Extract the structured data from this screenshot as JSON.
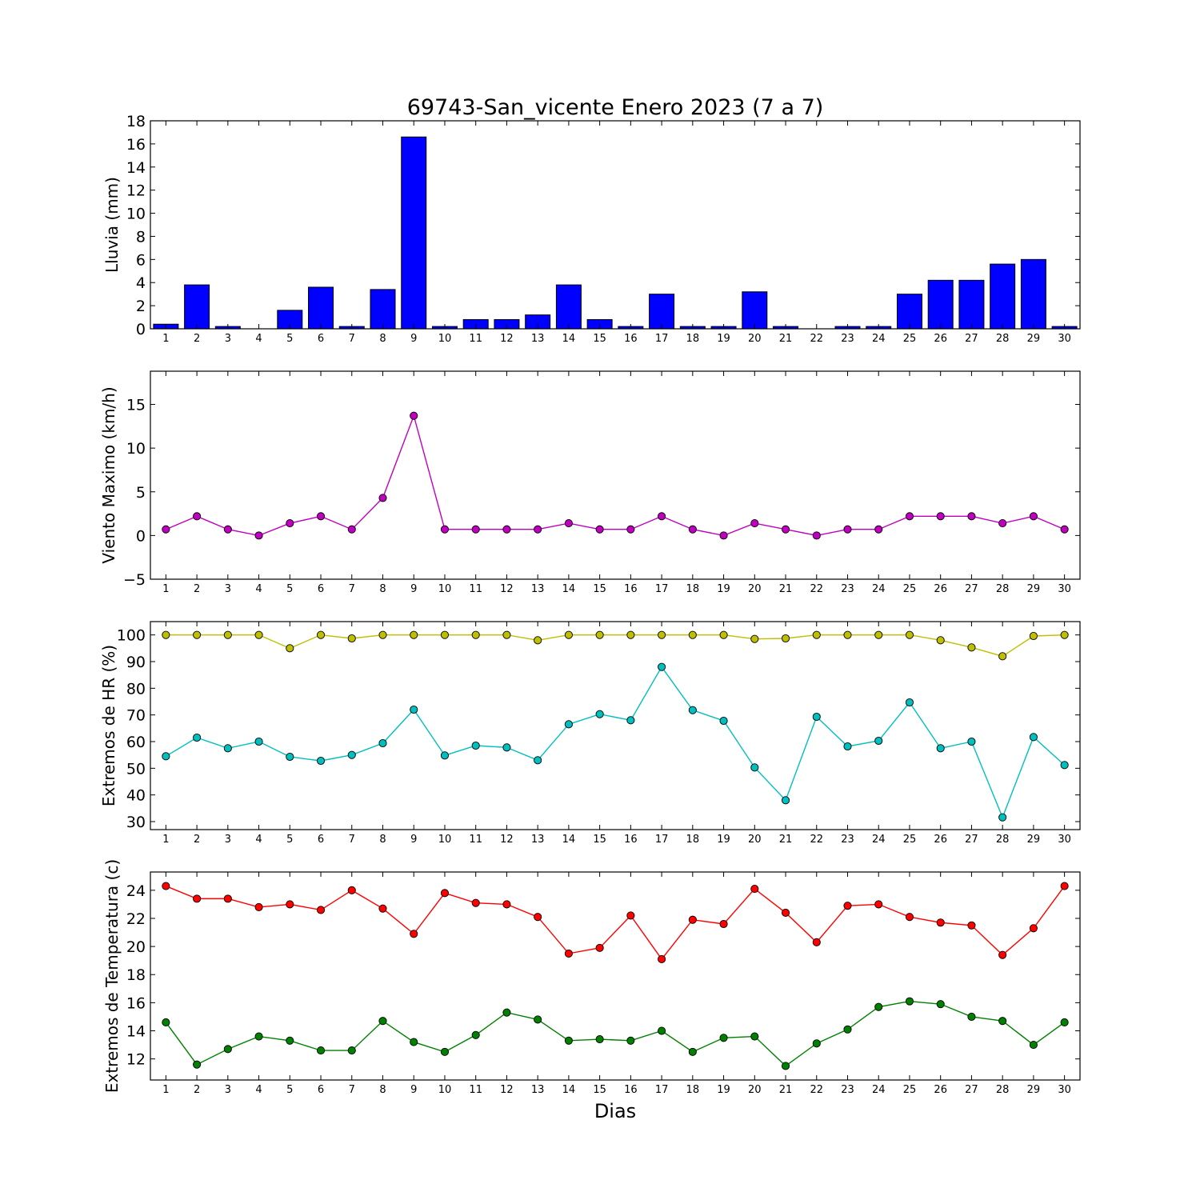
{
  "title": "69743-San_vicente Enero 2023  (7 a 7)",
  "xlabel": "Dias",
  "chart_data": [
    {
      "type": "bar",
      "ylabel": "Lluvia (mm)",
      "categories": [
        "1",
        "2",
        "3",
        "4",
        "5",
        "6",
        "7",
        "8",
        "9",
        "10",
        "11",
        "12",
        "13",
        "14",
        "15",
        "16",
        "17",
        "18",
        "19",
        "20",
        "21",
        "22",
        "23",
        "24",
        "25",
        "26",
        "27",
        "28",
        "29",
        "30"
      ],
      "ylim": [
        0,
        18
      ],
      "yticks": [
        0,
        2,
        4,
        6,
        8,
        10,
        12,
        14,
        16,
        18
      ],
      "series": [
        {
          "color": "#0000ff",
          "values": [
            0.4,
            3.8,
            0.2,
            0,
            1.6,
            3.6,
            0.2,
            3.4,
            16.6,
            0.2,
            0.8,
            0.8,
            1.2,
            3.8,
            0.8,
            0.2,
            3.0,
            0.2,
            0.2,
            3.2,
            0.2,
            0,
            0.2,
            0.2,
            3.0,
            4.2,
            4.2,
            5.6,
            6.0,
            0.2
          ]
        }
      ]
    },
    {
      "type": "line",
      "ylabel": "Viento Maximo (km/h)",
      "categories": [
        "1",
        "2",
        "3",
        "4",
        "5",
        "6",
        "7",
        "8",
        "9",
        "10",
        "11",
        "12",
        "13",
        "14",
        "15",
        "16",
        "17",
        "18",
        "19",
        "20",
        "21",
        "22",
        "23",
        "24",
        "25",
        "26",
        "27",
        "28",
        "29",
        "30"
      ],
      "ylim": [
        -5,
        18.8
      ],
      "yticks": [
        -5,
        0,
        5,
        10,
        15
      ],
      "series": [
        {
          "color": "#bf00bf",
          "values": [
            0.7,
            2.2,
            0.7,
            0,
            1.4,
            2.2,
            0.7,
            4.3,
            13.7,
            0.7,
            0.7,
            0.7,
            0.7,
            1.4,
            0.7,
            0.7,
            2.2,
            0.7,
            0,
            1.4,
            0.7,
            0,
            0.7,
            0.7,
            2.2,
            2.2,
            2.2,
            1.4,
            2.2,
            0.7
          ]
        }
      ]
    },
    {
      "type": "line",
      "ylabel": "Extremos de HR (%)",
      "categories": [
        "1",
        "2",
        "3",
        "4",
        "5",
        "6",
        "7",
        "8",
        "9",
        "10",
        "11",
        "12",
        "13",
        "14",
        "15",
        "16",
        "17",
        "18",
        "19",
        "20",
        "21",
        "22",
        "23",
        "24",
        "25",
        "26",
        "27",
        "28",
        "29",
        "30"
      ],
      "ylim": [
        27,
        105
      ],
      "yticks": [
        30,
        40,
        50,
        60,
        70,
        80,
        90,
        100
      ],
      "series": [
        {
          "color": "#bfbf00",
          "values": [
            100,
            100,
            100,
            100,
            95,
            100,
            98.7,
            100,
            100,
            100,
            100,
            100,
            98,
            100,
            100,
            100,
            100,
            100,
            100,
            98.5,
            98.7,
            100,
            100,
            100,
            100,
            98,
            95.3,
            92,
            99.6,
            100
          ]
        },
        {
          "color": "#00bfbf",
          "values": [
            54.5,
            61.5,
            57.5,
            60,
            54.3,
            52.8,
            55,
            59.4,
            72,
            54.8,
            58.5,
            57.8,
            53,
            66.5,
            70.3,
            68,
            88,
            71.8,
            67.8,
            50.3,
            38,
            69.3,
            58.2,
            60.3,
            74.7,
            57.5,
            60,
            31.6,
            61.7,
            51.2
          ]
        }
      ]
    },
    {
      "type": "line",
      "ylabel": "Extremos de Temperatura (c)",
      "categories": [
        "1",
        "2",
        "3",
        "4",
        "5",
        "6",
        "7",
        "8",
        "9",
        "10",
        "11",
        "12",
        "13",
        "14",
        "15",
        "16",
        "17",
        "18",
        "19",
        "20",
        "21",
        "22",
        "23",
        "24",
        "25",
        "26",
        "27",
        "28",
        "29",
        "30"
      ],
      "ylim": [
        10.5,
        25.3
      ],
      "yticks": [
        12,
        14,
        16,
        18,
        20,
        22,
        24
      ],
      "series": [
        {
          "color": "#ff0000",
          "values": [
            24.3,
            23.4,
            23.4,
            22.8,
            23.0,
            22.6,
            24.0,
            22.7,
            20.9,
            23.8,
            23.1,
            23.0,
            22.1,
            19.5,
            19.9,
            22.2,
            19.1,
            21.9,
            21.6,
            24.1,
            22.4,
            20.3,
            22.9,
            23.0,
            22.1,
            21.7,
            21.5,
            19.4,
            21.3,
            24.3
          ]
        },
        {
          "color": "#008000",
          "values": [
            14.6,
            11.6,
            12.7,
            13.6,
            13.3,
            12.6,
            12.6,
            14.7,
            13.2,
            12.5,
            13.7,
            15.3,
            14.8,
            13.3,
            13.4,
            13.3,
            14.0,
            12.5,
            13.5,
            13.6,
            11.5,
            13.1,
            14.1,
            15.7,
            16.1,
            15.9,
            15.0,
            14.7,
            13.0,
            14.6
          ]
        }
      ]
    }
  ]
}
